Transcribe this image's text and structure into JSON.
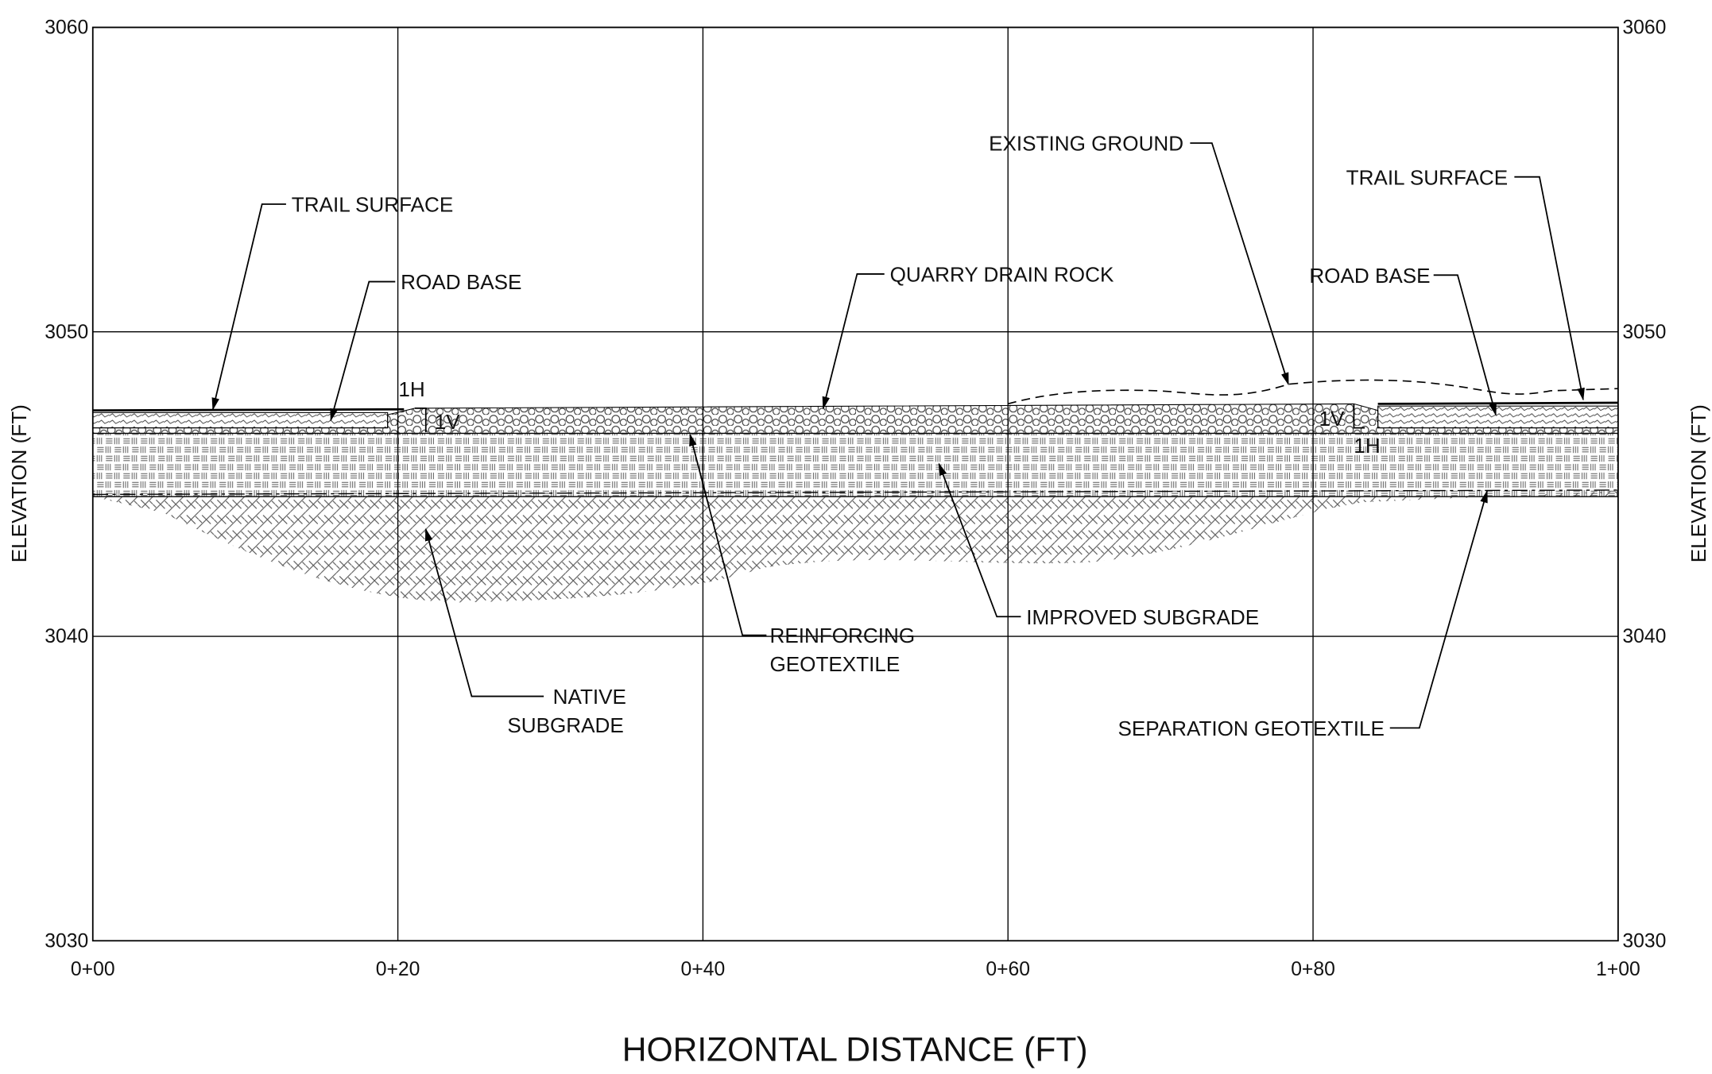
{
  "axes": {
    "x_label": "HORIZONTAL DISTANCE (FT)",
    "y_label": "ELEVATION (FT)",
    "x_ticks": [
      "0+00",
      "0+20",
      "0+40",
      "0+60",
      "0+80",
      "1+00"
    ],
    "y_ticks": [
      "3060",
      "3050",
      "3040",
      "3030"
    ]
  },
  "callouts": [
    {
      "lines": [
        "TRAIL SURFACE"
      ]
    },
    {
      "lines": [
        "ROAD BASE"
      ]
    },
    {
      "lines": [
        "QUARRY DRAIN ROCK"
      ]
    },
    {
      "lines": [
        "EXISTING GROUND"
      ]
    },
    {
      "lines": [
        "TRAIL SURFACE"
      ]
    },
    {
      "lines": [
        "ROAD BASE"
      ]
    },
    {
      "lines": [
        "REINFORCING",
        "GEOTEXTILE"
      ]
    },
    {
      "lines": [
        "IMPROVED SUBGRADE"
      ]
    },
    {
      "lines": [
        "NATIVE",
        "SUBGRADE"
      ]
    },
    {
      "lines": [
        "SEPARATION GEOTEXTILE"
      ]
    }
  ],
  "slope_labels": [
    "1H",
    "1V",
    "1V",
    "1H"
  ]
}
